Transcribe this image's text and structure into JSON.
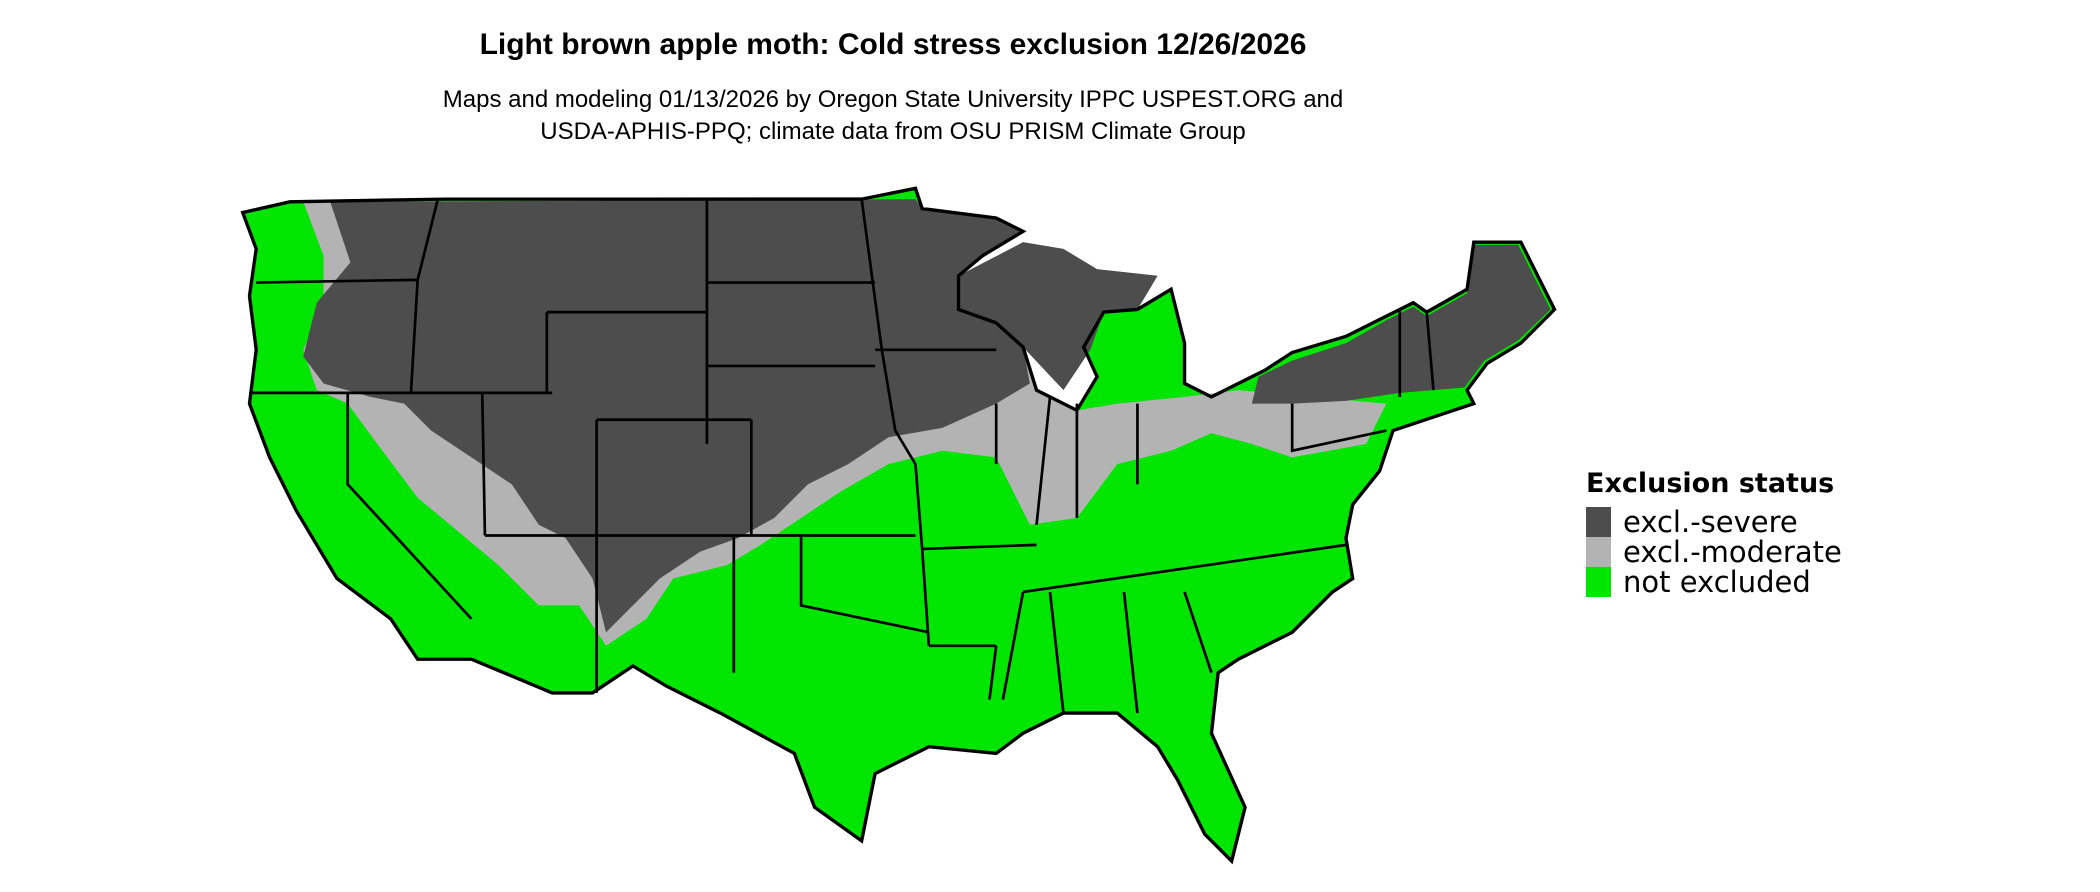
{
  "title": "Light brown apple moth: Cold stress exclusion 12/26/2026",
  "subtitle_lines": [
    "Maps and modeling 01/13/2026 by Oregon State University IPPC USPEST.ORG and",
    "USDA-APHIS-PPQ; climate data from OSU PRISM Climate Group"
  ],
  "legend": {
    "title": "Exclusion status",
    "items": [
      {
        "label": "excl.-severe",
        "color": "#4d4d4d"
      },
      {
        "label": "excl.-moderate",
        "color": "#b3b3b3"
      },
      {
        "label": "not excluded",
        "color": "#00e600"
      }
    ]
  },
  "map": {
    "region": "Contiguous United States",
    "border_color": "#000000"
  }
}
